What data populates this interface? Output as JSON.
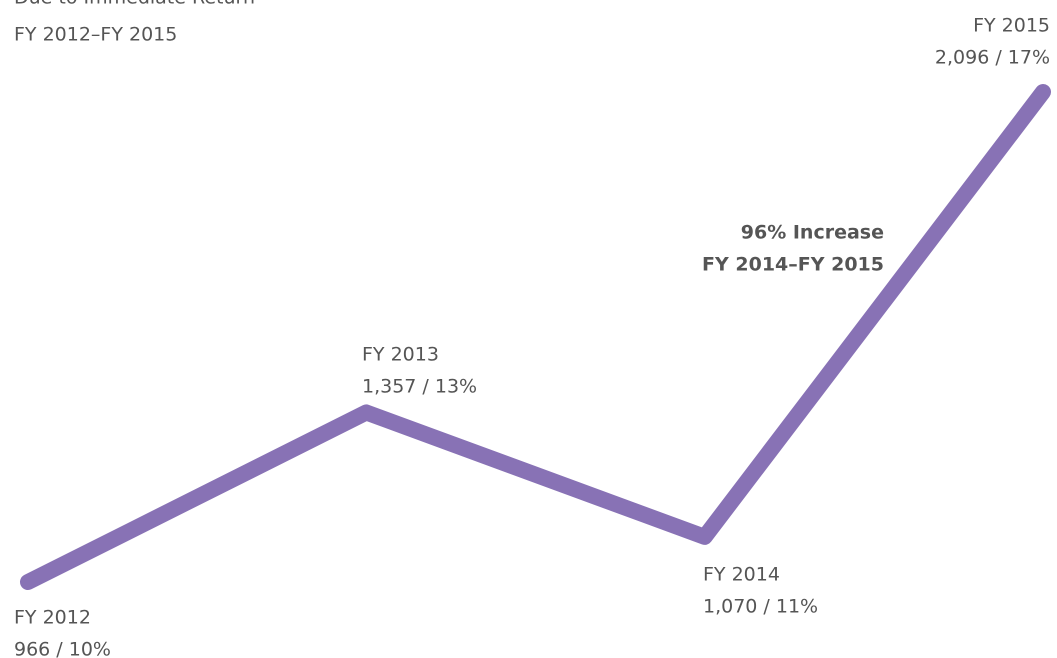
{
  "chart_data": {
    "type": "line",
    "title": "Due to Immediate Return",
    "subtitle": "FY 2012–FY 2015",
    "annotation": [
      "96% Increase",
      "FY 2014–FY 2015"
    ],
    "categories": [
      "FY 2012",
      "FY 2013",
      "FY 2014",
      "FY 2015"
    ],
    "series": [
      {
        "name": null,
        "color": "#8872b5",
        "values": [
          966,
          1357,
          1070,
          2096
        ],
        "value_labels": [
          "966 / 10%",
          "1,357 / 13%",
          "1,070 / 11%",
          "2,096 / 17%"
        ]
      }
    ]
  }
}
